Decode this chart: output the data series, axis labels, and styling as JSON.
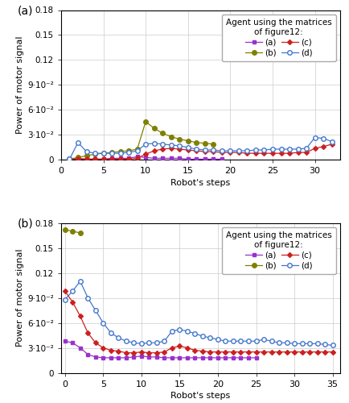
{
  "plot_a": {
    "label": "(a)",
    "series_a": {
      "x": [
        1,
        2,
        3,
        4,
        5,
        6,
        7,
        8,
        9,
        10,
        11,
        12,
        13,
        14,
        15,
        16,
        17,
        18,
        19
      ],
      "y": [
        0.001,
        0.002,
        0.001,
        0.001,
        0.001,
        0.002,
        0.002,
        0.002,
        0.004,
        0.003,
        0.002,
        0.002,
        0.002,
        0.002,
        0.001,
        0.001,
        0.001,
        0.001,
        0.001
      ]
    },
    "series_b": {
      "x": [
        1,
        2,
        3,
        4,
        5,
        6,
        7,
        8,
        9,
        10,
        11,
        12,
        13,
        14,
        15,
        16,
        17,
        18
      ],
      "y": [
        0.001,
        0.003,
        0.005,
        0.007,
        0.008,
        0.009,
        0.01,
        0.011,
        0.013,
        0.046,
        0.038,
        0.032,
        0.028,
        0.025,
        0.023,
        0.021,
        0.02,
        0.019
      ]
    },
    "series_c": {
      "x": [
        1,
        2,
        3,
        4,
        5,
        6,
        7,
        8,
        9,
        10,
        11,
        12,
        13,
        14,
        15,
        16,
        17,
        18,
        19,
        20,
        21,
        22,
        23,
        24,
        25,
        26,
        27,
        28,
        29,
        30,
        31,
        32
      ],
      "y": [
        0.001,
        0.001,
        0.001,
        0.001,
        0.001,
        0.001,
        0.001,
        0.001,
        0.002,
        0.007,
        0.011,
        0.013,
        0.014,
        0.013,
        0.012,
        0.011,
        0.01,
        0.01,
        0.009,
        0.009,
        0.009,
        0.008,
        0.008,
        0.008,
        0.008,
        0.008,
        0.008,
        0.009,
        0.009,
        0.014,
        0.016,
        0.019
      ]
    },
    "series_d": {
      "x": [
        1,
        2,
        3,
        4,
        5,
        6,
        7,
        8,
        9,
        10,
        11,
        12,
        13,
        14,
        15,
        16,
        17,
        18,
        19,
        20,
        21,
        22,
        23,
        24,
        25,
        26,
        27,
        28,
        29,
        30,
        31,
        32
      ],
      "y": [
        0.001,
        0.021,
        0.01,
        0.008,
        0.008,
        0.008,
        0.008,
        0.009,
        0.011,
        0.019,
        0.02,
        0.019,
        0.018,
        0.017,
        0.015,
        0.013,
        0.012,
        0.012,
        0.011,
        0.011,
        0.011,
        0.011,
        0.012,
        0.012,
        0.013,
        0.013,
        0.013,
        0.013,
        0.014,
        0.027,
        0.026,
        0.022
      ]
    },
    "ylim": [
      0,
      0.18
    ],
    "xlim": [
      0,
      33
    ],
    "yticks": [
      0,
      0.03,
      0.06,
      0.09,
      0.12,
      0.15,
      0.18
    ],
    "ytick_labels": [
      "0",
      "3·10⁻²",
      "6·10⁻²",
      "9·10⁻²",
      "0.12",
      "0.15",
      "0.18"
    ],
    "xticks": [
      0,
      5,
      10,
      15,
      20,
      25,
      30
    ]
  },
  "plot_b": {
    "label": "(b)",
    "series_a": {
      "x": [
        0,
        1,
        2,
        3,
        4,
        5,
        6,
        7,
        8,
        9,
        10,
        11,
        12,
        13,
        14,
        15,
        16,
        17,
        18,
        19,
        20,
        21,
        22,
        23,
        24,
        25
      ],
      "y": [
        0.038,
        0.036,
        0.03,
        0.022,
        0.019,
        0.018,
        0.018,
        0.018,
        0.018,
        0.019,
        0.02,
        0.019,
        0.019,
        0.018,
        0.018,
        0.018,
        0.018,
        0.018,
        0.018,
        0.018,
        0.018,
        0.018,
        0.018,
        0.018,
        0.018,
        0.018
      ]
    },
    "series_b": {
      "x": [
        0,
        1,
        2
      ],
      "y": [
        0.172,
        0.17,
        0.168
      ]
    },
    "series_c": {
      "x": [
        0,
        1,
        2,
        3,
        4,
        5,
        6,
        7,
        8,
        9,
        10,
        11,
        12,
        13,
        14,
        15,
        16,
        17,
        18,
        19,
        20,
        21,
        22,
        23,
        24,
        25,
        26,
        27,
        28,
        29,
        30,
        31,
        32,
        33,
        34,
        35
      ],
      "y": [
        0.098,
        0.085,
        0.068,
        0.048,
        0.036,
        0.03,
        0.027,
        0.026,
        0.024,
        0.024,
        0.025,
        0.024,
        0.024,
        0.025,
        0.03,
        0.032,
        0.03,
        0.027,
        0.026,
        0.025,
        0.025,
        0.025,
        0.025,
        0.025,
        0.025,
        0.025,
        0.025,
        0.025,
        0.025,
        0.025,
        0.025,
        0.025,
        0.025,
        0.025,
        0.025,
        0.025
      ]
    },
    "series_d": {
      "x": [
        0,
        1,
        2,
        3,
        4,
        5,
        6,
        7,
        8,
        9,
        10,
        11,
        12,
        13,
        14,
        15,
        16,
        17,
        18,
        19,
        20,
        21,
        22,
        23,
        24,
        25,
        26,
        27,
        28,
        29,
        30,
        31,
        32,
        33,
        34,
        35
      ],
      "y": [
        0.088,
        0.098,
        0.11,
        0.09,
        0.075,
        0.06,
        0.048,
        0.042,
        0.038,
        0.036,
        0.035,
        0.036,
        0.036,
        0.038,
        0.05,
        0.052,
        0.05,
        0.047,
        0.044,
        0.042,
        0.04,
        0.038,
        0.038,
        0.038,
        0.038,
        0.038,
        0.04,
        0.038,
        0.036,
        0.036,
        0.035,
        0.035,
        0.035,
        0.035,
        0.034,
        0.033
      ]
    },
    "ylim": [
      0,
      0.18
    ],
    "xlim": [
      -0.5,
      36
    ],
    "yticks": [
      0,
      0.03,
      0.06,
      0.09,
      0.12,
      0.15,
      0.18
    ],
    "ytick_labels": [
      "0",
      "3·10⁻²",
      "6·10⁻²",
      "9·10⁻²",
      "0.12",
      "0.15",
      "0.18"
    ],
    "xticks": [
      0,
      5,
      10,
      15,
      20,
      25,
      30,
      35
    ]
  },
  "colors": {
    "a": "#9932CC",
    "b": "#808000",
    "c": "#CC2020",
    "d": "#4477CC"
  },
  "legend_title": "Agent using the matrices\nof figure12:",
  "ylabel": "Power of motor signal",
  "xlabel": "Robot's steps"
}
